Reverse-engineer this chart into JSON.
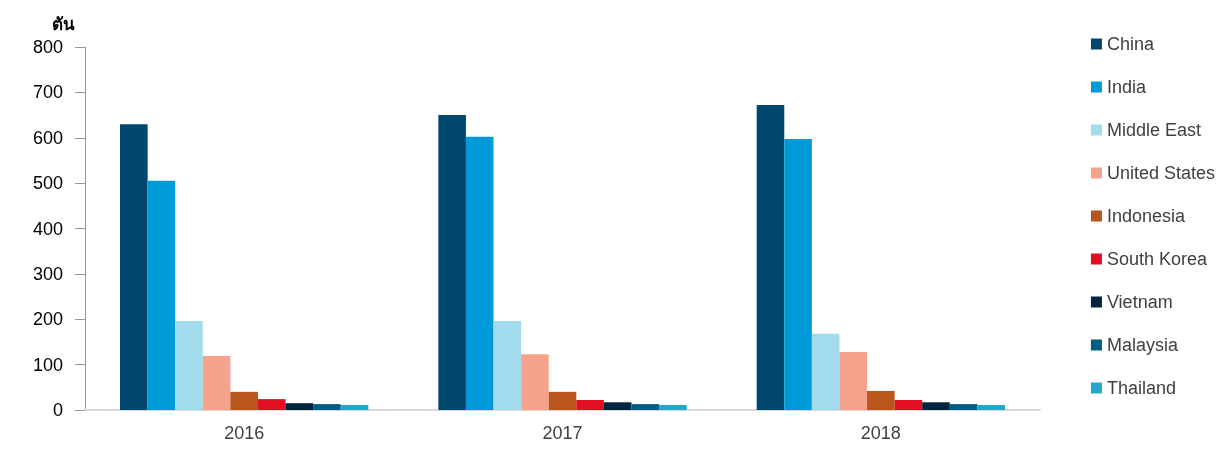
{
  "chart_data": {
    "type": "bar",
    "ylabel": "ตัน",
    "categories": [
      "2016",
      "2017",
      "2018"
    ],
    "series": [
      {
        "name": "China",
        "color": "#00476e",
        "values": [
          630,
          650,
          672
        ]
      },
      {
        "name": "India",
        "color": "#009ad8",
        "values": [
          505,
          602,
          597
        ]
      },
      {
        "name": "Middle East",
        "color": "#a2dcec",
        "values": [
          196,
          196,
          168
        ]
      },
      {
        "name": "United States",
        "color": "#f5a38c",
        "values": [
          119,
          123,
          128
        ]
      },
      {
        "name": "Indonesia",
        "color": "#b8561b",
        "values": [
          40,
          40,
          42
        ]
      },
      {
        "name": "South Korea",
        "color": "#e20e22",
        "values": [
          24,
          22,
          22
        ]
      },
      {
        "name": "Vietnam",
        "color": "#00263f",
        "values": [
          15,
          17,
          17
        ]
      },
      {
        "name": "Malaysia",
        "color": "#005e86",
        "values": [
          13,
          13,
          13
        ]
      },
      {
        "name": "Thailand",
        "color": "#24a6cb",
        "values": [
          11,
          11,
          11
        ]
      }
    ],
    "ylim": [
      0,
      800
    ],
    "yticks": [
      0,
      100,
      200,
      300,
      400,
      500,
      600,
      700,
      800
    ],
    "grid": false,
    "legend": "right"
  }
}
